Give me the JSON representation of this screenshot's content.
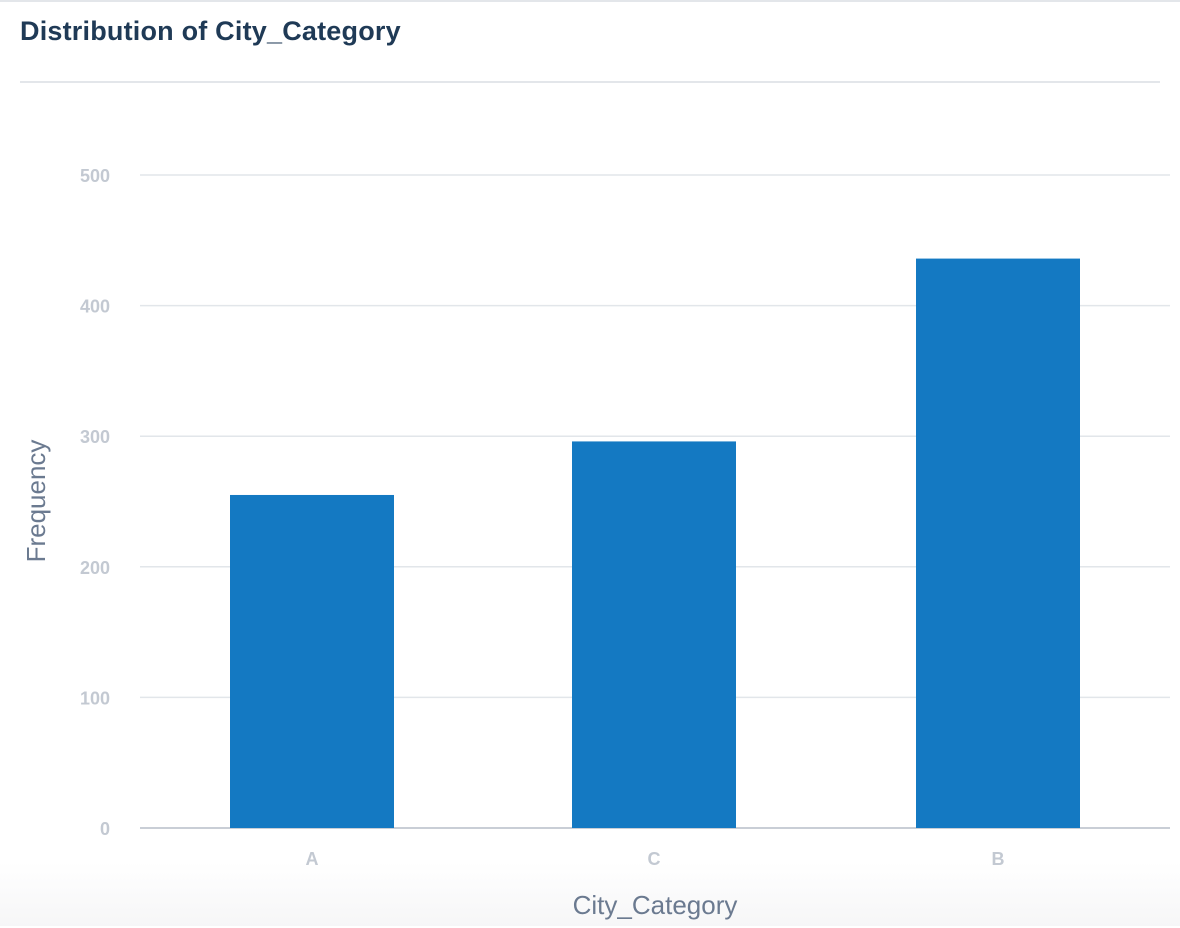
{
  "panel": {
    "title": "Distribution of City_Category"
  },
  "colors": {
    "bar": "#1479c2",
    "grid": "#e2e6ea",
    "baseline": "#c9ced6",
    "tick_text": "#c3c9d2",
    "axis_title": "#6b7a90",
    "title": "#1f3a56"
  },
  "chart_data": {
    "type": "bar",
    "title": "Distribution of City_Category",
    "xlabel": "City_Category",
    "ylabel": "Frequency",
    "categories": [
      "A",
      "C",
      "B"
    ],
    "values": [
      255,
      296,
      436
    ],
    "ylim": [
      0,
      500
    ],
    "yticks": [
      0,
      100,
      200,
      300,
      400,
      500
    ],
    "grid": true,
    "legend": "none"
  }
}
